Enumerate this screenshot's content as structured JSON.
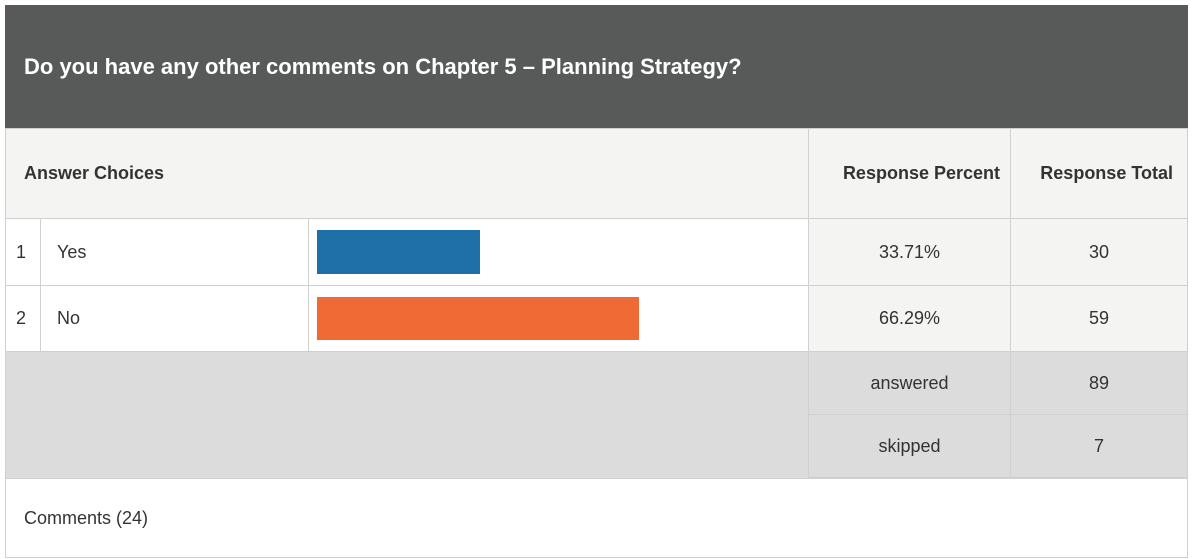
{
  "title": "Do you have any other comments on Chapter 5 – Planning Strategy?",
  "header": {
    "choices": "Answer Choices",
    "percent": "Response Percent",
    "total": "Response Total"
  },
  "rows": [
    {
      "index": 1,
      "choice": "Yes",
      "percent": 33.71,
      "percent_label": "33.71%",
      "total": 30,
      "color": "#1f6fa8"
    },
    {
      "index": 2,
      "choice": "No",
      "percent": 66.29,
      "percent_label": "66.29%",
      "total": 59,
      "color": "#f06a35"
    }
  ],
  "summary": [
    {
      "label": "answered",
      "value": 89
    },
    {
      "label": "skipped",
      "value": 7
    }
  ],
  "comments": "Comments (24)"
}
